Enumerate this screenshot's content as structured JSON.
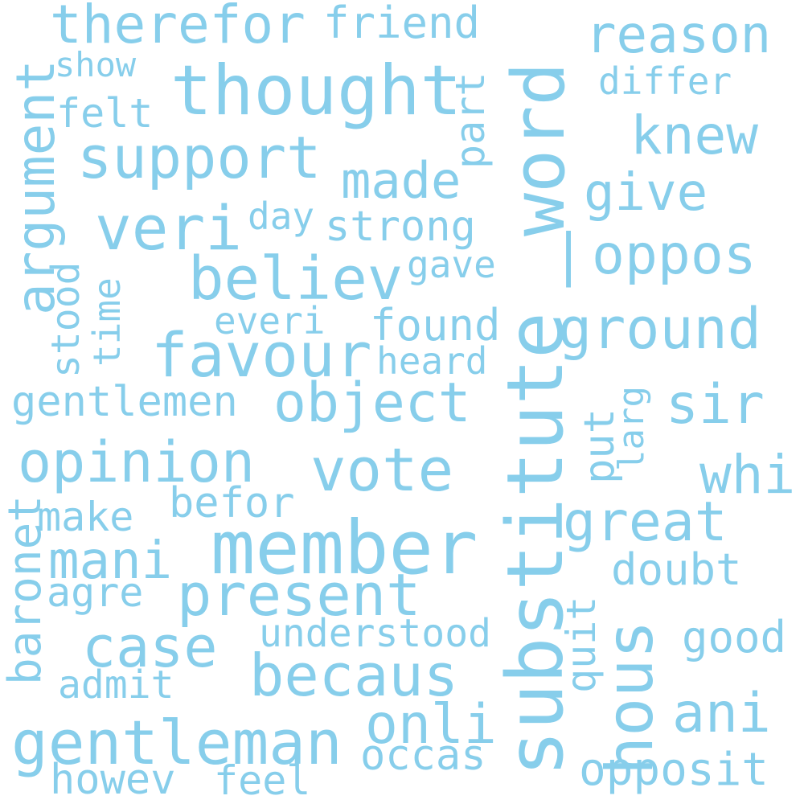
{
  "color": "#87ceeb",
  "words": {
    "therefor": "therefor",
    "friend": "friend",
    "reason": "reason",
    "show": "show",
    "thought": "thought",
    "differ": "differ",
    "felt": "felt",
    "argument": "argument",
    "part": "part",
    "word": "word",
    "support": "support",
    "knew": "knew",
    "made": "made",
    "give": "give",
    "veri": "veri",
    "day": "day",
    "strong": "strong",
    "bar": "|",
    "oppos": "oppos",
    "believ": "believ",
    "gave": "gave",
    "stood": "stood",
    "time": "time",
    "everi": "everi",
    "found": "found",
    "ground": "ground",
    "favour": "favour",
    "heard": "heard",
    "substitute": "substitute",
    "gentlemen": "gentlemen",
    "object": "object",
    "sir": "sir",
    "put": "put",
    "larg": "larg",
    "opinion": "opinion",
    "vote": "vote",
    "whi": "whi",
    "befor": "befor",
    "make": "make",
    "great": "great",
    "member": "member",
    "baronet": "baronet",
    "mani": "mani",
    "doubt": "doubt",
    "agre": "agre",
    "present": "present",
    "quit": "quit",
    "hous": "hous",
    "understood": "understood",
    "case": "case",
    "good": "good",
    "becaus": "becaus",
    "admit": "admit",
    "ani": "ani",
    "gentleman": "gentleman",
    "onli": "onli",
    "occas": "occas",
    "howev": "howev",
    "feel": "feel",
    "opposit": "opposit"
  }
}
